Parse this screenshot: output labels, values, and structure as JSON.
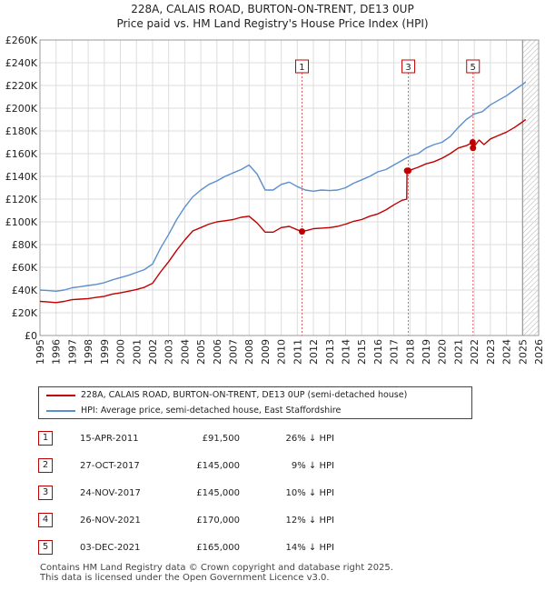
{
  "chart_data": {
    "type": "line",
    "title": "228A, CALAIS ROAD, BURTON-ON-TRENT, DE13 0UP",
    "subtitle": "Price paid vs. HM Land Registry's House Price Index (HPI)",
    "xlim": [
      1995,
      2026
    ],
    "ylim": [
      0,
      260000
    ],
    "x_ticks": [
      1995,
      1996,
      1997,
      1998,
      1999,
      2000,
      2001,
      2002,
      2003,
      2004,
      2005,
      2006,
      2007,
      2008,
      2009,
      2010,
      2011,
      2012,
      2013,
      2014,
      2015,
      2016,
      2017,
      2018,
      2019,
      2020,
      2021,
      2022,
      2023,
      2024,
      2025,
      2026
    ],
    "y_ticks": [
      0,
      20000,
      40000,
      60000,
      80000,
      100000,
      120000,
      140000,
      160000,
      180000,
      200000,
      220000,
      240000,
      260000
    ],
    "y_tick_labels": [
      "£0",
      "£20K",
      "£40K",
      "£60K",
      "£80K",
      "£100K",
      "£120K",
      "£140K",
      "£160K",
      "£180K",
      "£200K",
      "£220K",
      "£240K",
      "£260K"
    ],
    "grid": true,
    "future_hatch_from": 2025.0,
    "colors": {
      "property": "#c00000",
      "hpi": "#5b8fd0",
      "marker": "#c00000"
    },
    "series": [
      {
        "name": "228A, CALAIS ROAD, BURTON-ON-TRENT, DE13 0UP (semi-detached house)",
        "color": "#c00000",
        "x": [
          1995.0,
          1995.5,
          1996.0,
          1996.5,
          1997.0,
          1997.5,
          1998.0,
          1998.5,
          1999.0,
          1999.5,
          2000.0,
          2000.5,
          2001.0,
          2001.5,
          2002.0,
          2002.5,
          2003.0,
          2003.5,
          2004.0,
          2004.5,
          2005.0,
          2005.5,
          2006.0,
          2006.5,
          2007.0,
          2007.5,
          2008.0,
          2008.5,
          2009.0,
          2009.5,
          2010.0,
          2010.5,
          2011.0,
          2011.29,
          2011.6,
          2012.0,
          2012.5,
          2013.0,
          2013.5,
          2014.0,
          2014.5,
          2015.0,
          2015.5,
          2016.0,
          2016.5,
          2017.0,
          2017.5,
          2017.8,
          2017.82,
          2017.9,
          2018.5,
          2019.0,
          2019.5,
          2020.0,
          2020.5,
          2021.0,
          2021.5,
          2021.9,
          2021.92,
          2022.3,
          2022.6,
          2023.0,
          2023.5,
          2024.0,
          2024.5,
          2025.0,
          2025.2
        ],
        "y": [
          30000,
          29500,
          29000,
          30000,
          31500,
          32000,
          32500,
          33500,
          34500,
          36500,
          37500,
          39000,
          40500,
          42500,
          46000,
          56000,
          65000,
          75000,
          84000,
          92000,
          95000,
          98000,
          100000,
          101000,
          102000,
          104000,
          105000,
          99000,
          91000,
          91000,
          95000,
          96000,
          93000,
          91500,
          92500,
          94000,
          94500,
          95000,
          96000,
          98000,
          100500,
          102000,
          105000,
          107000,
          110500,
          115000,
          119000,
          120000,
          145000,
          145000,
          148000,
          151000,
          153000,
          156000,
          160000,
          165000,
          167000,
          170000,
          165000,
          172000,
          168000,
          173000,
          176000,
          179000,
          183000,
          188000,
          190000
        ]
      },
      {
        "name": "HPI: Average price, semi-detached house, East Staffordshire",
        "color": "#5b8fd0",
        "x": [
          1995.0,
          1995.5,
          1996.0,
          1996.5,
          1997.0,
          1997.5,
          1998.0,
          1998.5,
          1999.0,
          1999.5,
          2000.0,
          2000.5,
          2001.0,
          2001.5,
          2002.0,
          2002.5,
          2003.0,
          2003.5,
          2004.0,
          2004.5,
          2005.0,
          2005.5,
          2006.0,
          2006.5,
          2007.0,
          2007.5,
          2008.0,
          2008.5,
          2009.0,
          2009.5,
          2010.0,
          2010.5,
          2011.0,
          2011.5,
          2012.0,
          2012.5,
          2013.0,
          2013.5,
          2014.0,
          2014.5,
          2015.0,
          2015.5,
          2016.0,
          2016.5,
          2017.0,
          2017.5,
          2018.0,
          2018.5,
          2019.0,
          2019.5,
          2020.0,
          2020.5,
          2021.0,
          2021.5,
          2022.0,
          2022.5,
          2023.0,
          2023.5,
          2024.0,
          2024.5,
          2025.0,
          2025.2
        ],
        "y": [
          40000,
          39500,
          39000,
          40000,
          42000,
          43000,
          44000,
          45000,
          46500,
          49000,
          51000,
          53000,
          55500,
          58000,
          63000,
          77000,
          89000,
          102000,
          113000,
          122000,
          128000,
          133000,
          136000,
          140000,
          143000,
          146000,
          150000,
          142000,
          128000,
          128000,
          133000,
          135000,
          131000,
          128000,
          127000,
          128000,
          127500,
          128000,
          130000,
          134000,
          137000,
          140000,
          144000,
          146000,
          150000,
          154000,
          158000,
          160000,
          165000,
          168000,
          170000,
          175000,
          183000,
          190000,
          195000,
          197000,
          203000,
          207000,
          211000,
          216000,
          221000,
          223000
        ]
      }
    ],
    "annotations": [
      {
        "label": "1",
        "x": 2011.29,
        "y": 91500
      },
      {
        "label": "2",
        "x": 2017.82,
        "y": 145000
      },
      {
        "label": "3",
        "x": 2017.9,
        "y": 145000
      },
      {
        "label": "4",
        "x": 2021.9,
        "y": 170000
      },
      {
        "label": "5",
        "x": 2021.92,
        "y": 165000
      }
    ],
    "box_labels": [
      {
        "label": "1",
        "x": 2011.29
      },
      {
        "label": "3",
        "x": 2017.9
      },
      {
        "label": "5",
        "x": 2021.92
      }
    ]
  },
  "legend": {
    "property_label": "228A, CALAIS ROAD, BURTON-ON-TRENT, DE13 0UP (semi-detached house)",
    "hpi_label": "HPI: Average price, semi-detached house, East Staffordshire"
  },
  "transactions": [
    {
      "num": "1",
      "date": "15-APR-2011",
      "price": "£91,500",
      "hpi": "26% ↓ HPI"
    },
    {
      "num": "2",
      "date": "27-OCT-2017",
      "price": "£145,000",
      "hpi": "9% ↓ HPI"
    },
    {
      "num": "3",
      "date": "24-NOV-2017",
      "price": "£145,000",
      "hpi": "10% ↓ HPI"
    },
    {
      "num": "4",
      "date": "26-NOV-2021",
      "price": "£170,000",
      "hpi": "12% ↓ HPI"
    },
    {
      "num": "5",
      "date": "03-DEC-2021",
      "price": "£165,000",
      "hpi": "14% ↓ HPI"
    }
  ],
  "footer": {
    "line1": "Contains HM Land Registry data © Crown copyright and database right 2025.",
    "line2": "This data is licensed under the Open Government Licence v3.0."
  }
}
